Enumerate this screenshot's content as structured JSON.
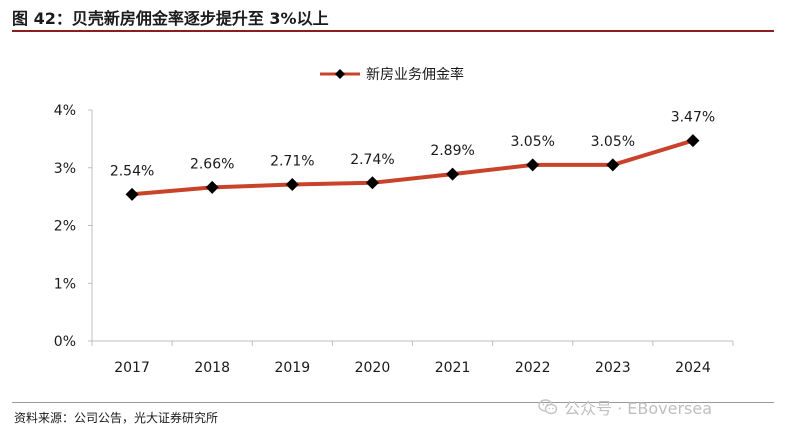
{
  "figure_title": "图 42：贝壳新房佣金率逐步提升至 3%以上",
  "source": "资料来源：公司公告，光大证券研究所",
  "watermark": "公众号 · EBoversea",
  "colors": {
    "line": "#c8432a",
    "marker": "#000000",
    "title_rule": "#8b1f1f",
    "axis": "#bfbfbf"
  },
  "chart_data": {
    "type": "line",
    "title": "",
    "xlabel": "",
    "ylabel": "",
    "categories": [
      "2017",
      "2018",
      "2019",
      "2020",
      "2021",
      "2022",
      "2023",
      "2024"
    ],
    "series": [
      {
        "name": "新房业务佣金率",
        "values": [
          2.54,
          2.66,
          2.71,
          2.74,
          2.89,
          3.05,
          3.05,
          3.47
        ],
        "labels": [
          "2.54%",
          "2.66%",
          "2.71%",
          "2.74%",
          "2.89%",
          "3.05%",
          "3.05%",
          "3.47%"
        ]
      }
    ],
    "ylim": [
      0,
      4
    ],
    "yticks": [
      "0%",
      "1%",
      "2%",
      "3%",
      "4%"
    ],
    "grid": false,
    "legend": "top-center",
    "marker": "diamond"
  }
}
